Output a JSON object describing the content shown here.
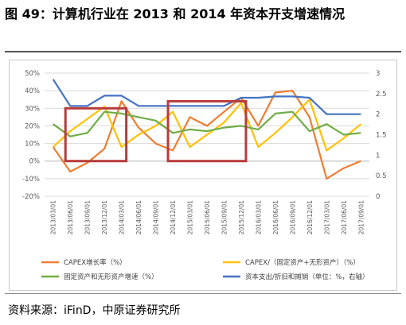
{
  "figure": {
    "title": "图 49：计算机行业在 2013 和 2014 年资本开支增速情况",
    "source": "资料来源：iFinD，中原证券研究所"
  },
  "chart_data": {
    "type": "line",
    "title": "",
    "xlabel": "",
    "ylabel": "",
    "categories": [
      "2013/03/01",
      "2013/06/01",
      "2013/09/01",
      "2013/12/01",
      "2014/03/01",
      "2014/06/01",
      "2014/09/01",
      "2014/12/01",
      "2015/03/01",
      "2015/06/01",
      "2015/09/01",
      "2015/12/01",
      "2016/03/01",
      "2016/06/01",
      "2016/09/01",
      "2016/12/01",
      "2017/03/01",
      "2017/06/01",
      "2017/09/01"
    ],
    "y_left": {
      "min": -20,
      "max": 50,
      "step": 10,
      "tick_labels": [
        "-20%",
        "-10%",
        "0%",
        "10%",
        "20%",
        "30%",
        "40%",
        "50%"
      ]
    },
    "y_right": {
      "min": 0,
      "max": 3,
      "step": 0.5,
      "tick_labels": [
        "0",
        "0.5",
        "1",
        "1.5",
        "2",
        "2.5",
        "3"
      ]
    },
    "grid": "horizontal",
    "legend_position": "bottom",
    "series": [
      {
        "name": "CAPEX增长率（%）",
        "axis": "left",
        "color": "#ED7D31",
        "values": [
          8,
          -6,
          -1,
          7,
          34,
          19,
          10,
          6,
          25,
          20,
          28,
          36,
          20,
          39,
          40,
          25,
          -10,
          -4,
          0
        ]
      },
      {
        "name": "CAPEX/（固定资产+无形资产）（%）",
        "axis": "left",
        "color": "#FFC000",
        "values": [
          8,
          17,
          24,
          31,
          8,
          15,
          20,
          28,
          8,
          15,
          22,
          33,
          8,
          16,
          25,
          35,
          6,
          13,
          21
        ]
      },
      {
        "name": "固定资产和无形资产增速（%）",
        "axis": "left",
        "color": "#70AD47",
        "values": [
          21,
          14,
          16,
          28,
          27,
          25,
          23,
          16,
          18,
          17,
          19,
          20,
          18,
          27,
          28,
          17,
          21,
          15,
          16
        ]
      },
      {
        "name": "资本支出/折旧和摊销（单位：%，右轴）",
        "axis": "right",
        "color": "#4472C4",
        "values": [
          2.85,
          2.2,
          2.2,
          2.45,
          2.45,
          2.2,
          2.2,
          2.2,
          2.2,
          2.2,
          2.2,
          2.4,
          2.4,
          2.43,
          2.43,
          2.4,
          2.0,
          2.0,
          2.0
        ]
      }
    ],
    "highlights": [
      {
        "from": "2013/06/01",
        "to": "2014/03/01",
        "color": "#B83B3B"
      },
      {
        "from": "2014/12/01",
        "to": "2015/12/01",
        "color": "#B83B3B"
      }
    ]
  }
}
